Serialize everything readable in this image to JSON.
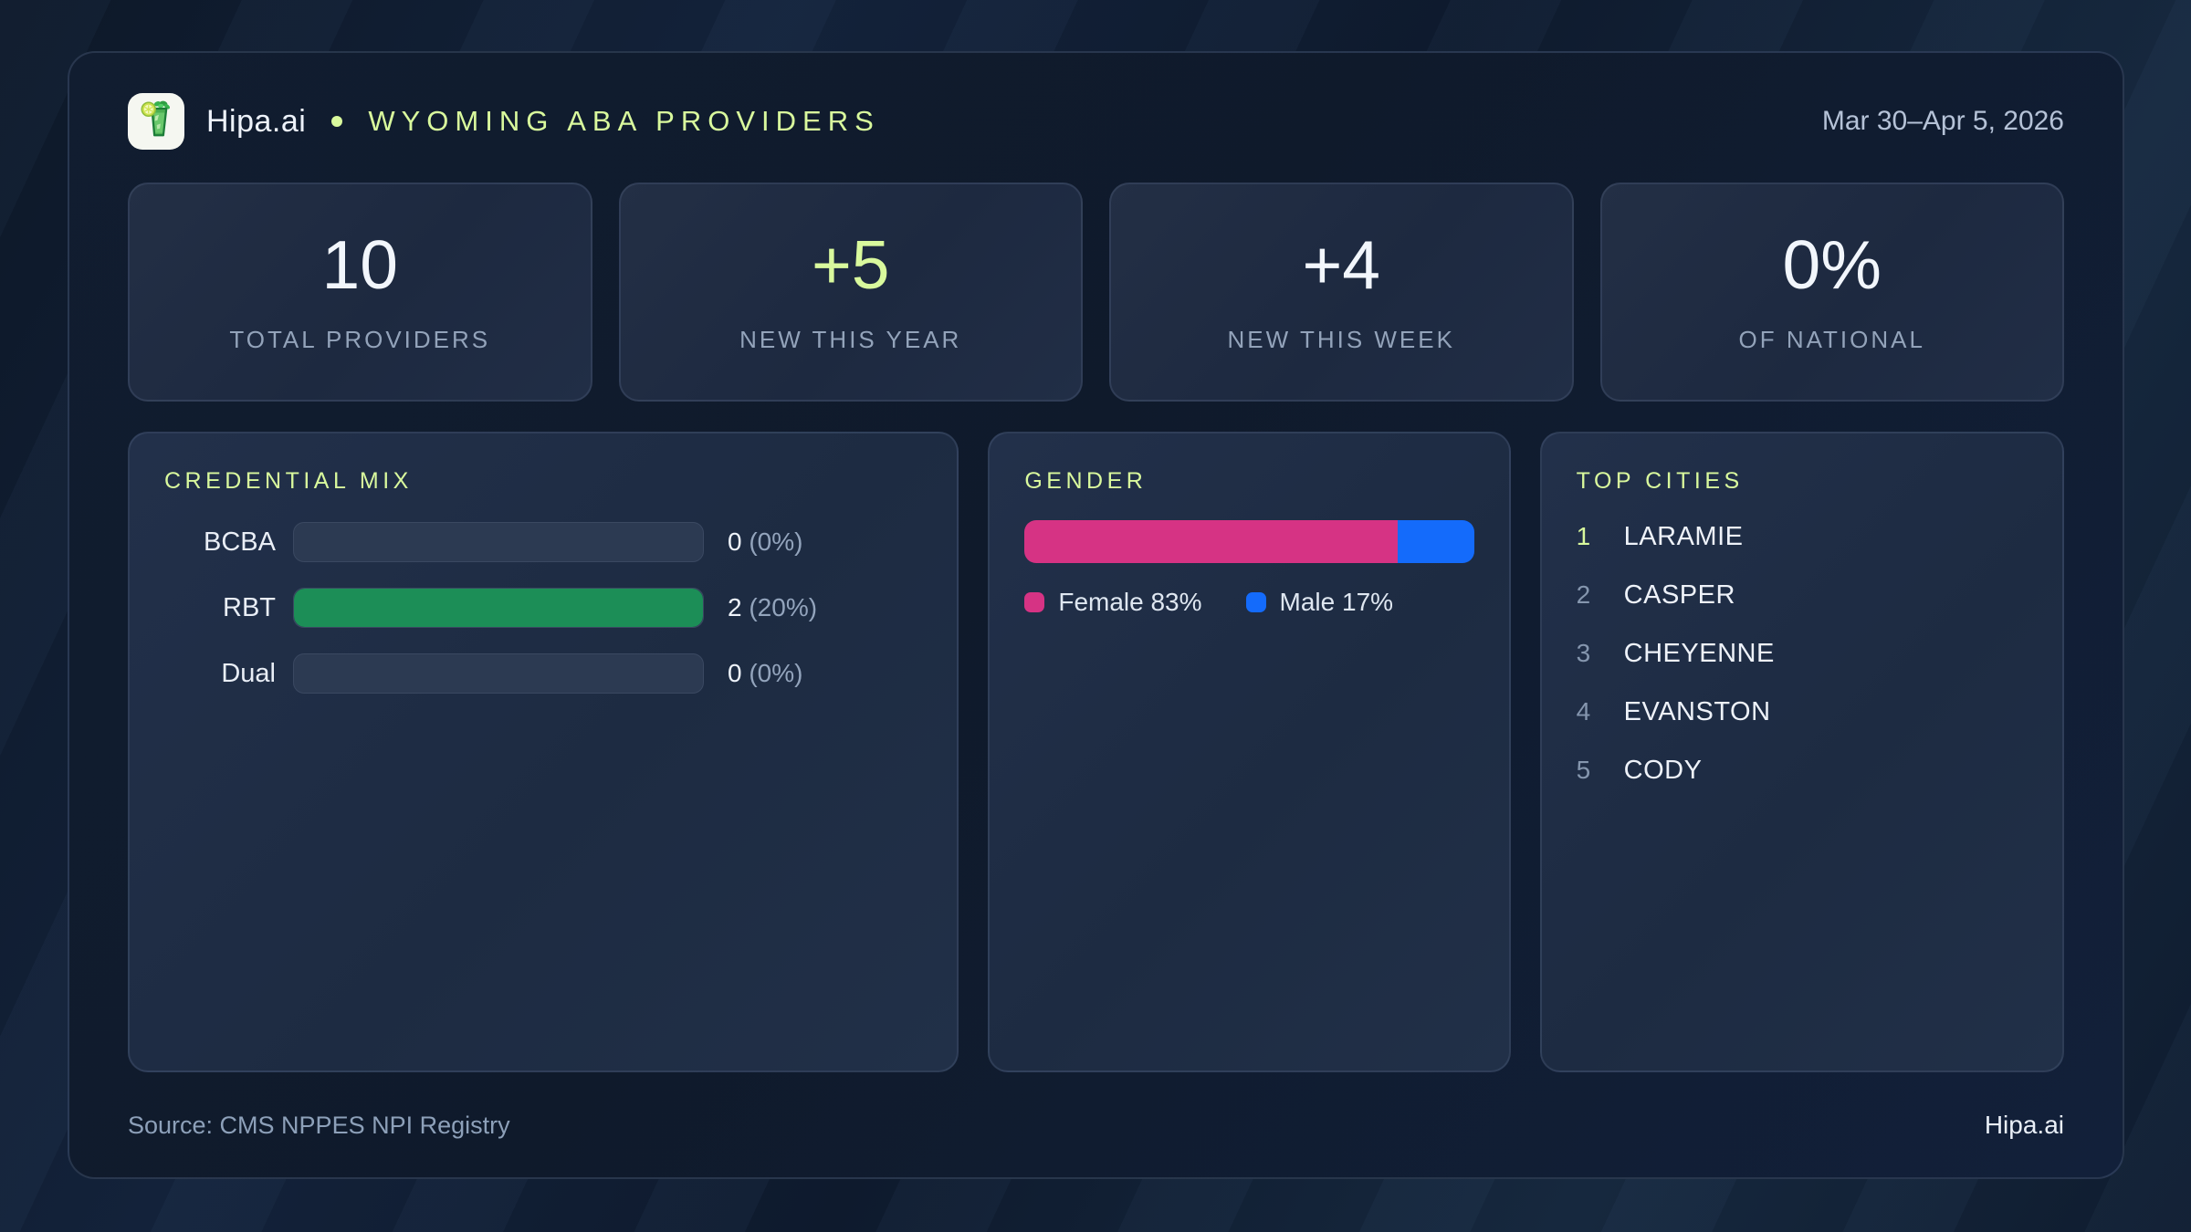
{
  "header": {
    "brand": "Hipa.ai",
    "title": "WYOMING ABA PROVIDERS",
    "date_range": "Mar 30–Apr 5, 2026"
  },
  "stats": [
    {
      "value": "10",
      "label": "TOTAL PROVIDERS",
      "emphasis": "white"
    },
    {
      "value": "+5",
      "label": "NEW THIS YEAR",
      "emphasis": "accent"
    },
    {
      "value": "+4",
      "label": "NEW THIS WEEK",
      "emphasis": "white"
    },
    {
      "value": "0%",
      "label": "OF NATIONAL",
      "emphasis": "white"
    }
  ],
  "credential": {
    "title": "CREDENTIAL MIX",
    "rows": [
      {
        "label": "BCBA",
        "count": "0",
        "pct": "(0%)",
        "bar_pct": 0
      },
      {
        "label": "RBT",
        "count": "2",
        "pct": "(20%)",
        "bar_pct": 100
      },
      {
        "label": "Dual",
        "count": "0",
        "pct": "(0%)",
        "bar_pct": 0
      }
    ]
  },
  "gender": {
    "title": "GENDER",
    "female_pct": 83,
    "male_pct": 17,
    "female_label": "Female 83%",
    "male_label": "Male 17%"
  },
  "cities": {
    "title": "TOP CITIES",
    "items": [
      {
        "rank": "1",
        "name": "LARAMIE"
      },
      {
        "rank": "2",
        "name": "CASPER"
      },
      {
        "rank": "3",
        "name": "CHEYENNE"
      },
      {
        "rank": "4",
        "name": "EVANSTON"
      },
      {
        "rank": "5",
        "name": "CODY"
      }
    ]
  },
  "footer": {
    "source": "Source: CMS NPPES NPI Registry",
    "brand": "Hipa.ai"
  },
  "icons": {
    "logo": "mojito-drink-icon"
  },
  "colors": {
    "accent_green": "#d9f99d",
    "bar_green": "#1c8e57",
    "female_pink": "#d63384",
    "male_blue": "#146bfb",
    "card_bg": "#101b2c",
    "panel_bg": "#202e45",
    "page_bg": "#101d30"
  },
  "chart_data": [
    {
      "type": "bar",
      "title": "CREDENTIAL MIX",
      "orientation": "horizontal",
      "categories": [
        "BCBA",
        "RBT",
        "Dual"
      ],
      "values": [
        0,
        2,
        0
      ],
      "value_labels": [
        "0 (0%)",
        "2 (20%)",
        "0 (0%)"
      ],
      "bar_fill_pct_of_track": [
        0,
        100,
        0
      ],
      "bar_color": "#1c8e57"
    },
    {
      "type": "bar",
      "title": "GENDER",
      "style": "single-stacked-bar",
      "categories": [
        "Female",
        "Male"
      ],
      "values": [
        83,
        17
      ],
      "unit": "%",
      "colors": [
        "#d63384",
        "#146bfb"
      ],
      "legend_position": "below"
    }
  ]
}
